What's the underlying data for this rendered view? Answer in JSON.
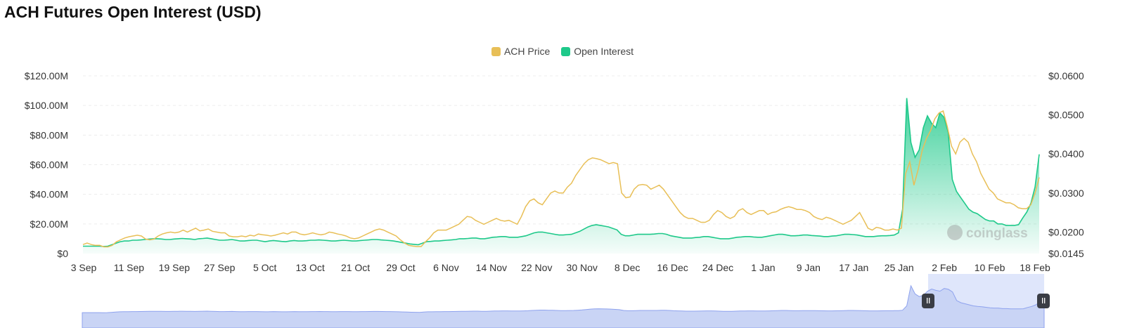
{
  "header": {
    "title": "ACH Futures Open Interest (USD)"
  },
  "legend": [
    {
      "label": "ACH Price",
      "color": "#e8bf57"
    },
    {
      "label": "Open Interest",
      "color": "#1ec98a"
    }
  ],
  "watermark": "coinglass",
  "chart_data": {
    "type": "area",
    "title": "ACH Futures Open Interest (USD)",
    "x_ticks": [
      "3 Sep",
      "11 Sep",
      "19 Sep",
      "27 Sep",
      "5 Oct",
      "13 Oct",
      "21 Oct",
      "29 Oct",
      "6 Nov",
      "14 Nov",
      "22 Nov",
      "30 Nov",
      "8 Dec",
      "16 Dec",
      "24 Dec",
      "1 Jan",
      "9 Jan",
      "17 Jan",
      "25 Jan",
      "2 Feb",
      "10 Feb",
      "18 Feb"
    ],
    "y_left": {
      "ticks": [
        "$0",
        "$20.00M",
        "$40.00M",
        "$60.00M",
        "$80.00M",
        "$100.00M",
        "$120.00M"
      ],
      "range": [
        0,
        120
      ]
    },
    "y_right": {
      "ticks": [
        "$0.0145",
        "$0.0200",
        "$0.0300",
        "$0.0400",
        "$0.0500",
        "$0.0600"
      ],
      "range": [
        0.0145,
        0.06
      ]
    },
    "series": [
      {
        "name": "Open Interest",
        "axis": "left",
        "color": "#1ec98a",
        "values": [
          5,
          5,
          5,
          5,
          5,
          4.8,
          5,
          6,
          7,
          8,
          8.5,
          8.5,
          9,
          9,
          9.2,
          9.5,
          9.8,
          10,
          10,
          9.8,
          9.5,
          9.5,
          9.8,
          10,
          10.2,
          10,
          9.8,
          9.5,
          10,
          10.2,
          10.5,
          10,
          9.5,
          9,
          9,
          9.2,
          9.5,
          9,
          8.5,
          8.5,
          8.8,
          9,
          9,
          8.5,
          8,
          8.5,
          8.8,
          8.5,
          8.2,
          8,
          8.5,
          8.8,
          8.5,
          8.5,
          8.7,
          9,
          9,
          9.2,
          9,
          8.8,
          8.5,
          8.5,
          8.8,
          9,
          8.8,
          8.5,
          8.5,
          8.8,
          9,
          9.2,
          9.5,
          9.5,
          9.2,
          9,
          8.8,
          8.5,
          8,
          7.5,
          7,
          6.5,
          6.2,
          6,
          7,
          8,
          8.2,
          8.5,
          8.5,
          8.8,
          9,
          9.2,
          9.5,
          10,
          10,
          10.2,
          10.5,
          10.5,
          10,
          10,
          10.5,
          11,
          11.2,
          11.5,
          11.5,
          11,
          11,
          11,
          11.5,
          12,
          13,
          14,
          14.5,
          14.5,
          14,
          13.5,
          13,
          12.5,
          12.5,
          12.8,
          13,
          14,
          15,
          16.5,
          18,
          19,
          19.5,
          19,
          18.5,
          18,
          17,
          16,
          13,
          12,
          12,
          12.5,
          13,
          13,
          13,
          13,
          13.2,
          13.5,
          13.5,
          13,
          12,
          11.5,
          11,
          10.5,
          10.5,
          10.5,
          10.8,
          11,
          11.5,
          11.5,
          11,
          10.5,
          10,
          10,
          10,
          10.5,
          11,
          11.2,
          11.5,
          11.5,
          11.2,
          11,
          11,
          11.5,
          12,
          12.5,
          13,
          13,
          12.5,
          12,
          12,
          12.2,
          12.5,
          12.5,
          12.2,
          12,
          11.8,
          11.5,
          11.5,
          11.8,
          12,
          12.5,
          13,
          13,
          12.8,
          12.5,
          12,
          11.5,
          11.5,
          11.5,
          11.8,
          12,
          12,
          12.2,
          12.5,
          14,
          30,
          105,
          75,
          65,
          70,
          85,
          93,
          88,
          85,
          95,
          92,
          82,
          50,
          42,
          38,
          34,
          30,
          28,
          27,
          25,
          23,
          22,
          22,
          20,
          20,
          19,
          19,
          19,
          19.5,
          24,
          28,
          34,
          45,
          67
        ],
        "area": true
      },
      {
        "name": "ACH Price",
        "axis": "right",
        "color": "#e8bf57",
        "values": [
          0.0168,
          0.0172,
          0.0168,
          0.0166,
          0.0166,
          0.0162,
          0.0162,
          0.0166,
          0.0175,
          0.018,
          0.0185,
          0.0188,
          0.019,
          0.0192,
          0.019,
          0.0182,
          0.018,
          0.0182,
          0.019,
          0.0195,
          0.0198,
          0.02,
          0.0198,
          0.02,
          0.0205,
          0.02,
          0.0205,
          0.021,
          0.0203,
          0.0205,
          0.0208,
          0.0202,
          0.02,
          0.0198,
          0.0198,
          0.019,
          0.0188,
          0.0188,
          0.019,
          0.0188,
          0.0192,
          0.019,
          0.0195,
          0.0193,
          0.0192,
          0.019,
          0.0192,
          0.0195,
          0.0198,
          0.0195,
          0.02,
          0.02,
          0.0195,
          0.0193,
          0.0195,
          0.0198,
          0.0195,
          0.0193,
          0.0195,
          0.02,
          0.0198,
          0.0195,
          0.0193,
          0.019,
          0.0185,
          0.0183,
          0.0185,
          0.019,
          0.0195,
          0.02,
          0.0205,
          0.0208,
          0.0205,
          0.02,
          0.0195,
          0.019,
          0.018,
          0.0172,
          0.0166,
          0.0164,
          0.0163,
          0.0163,
          0.0175,
          0.0185,
          0.0198,
          0.0205,
          0.0205,
          0.0205,
          0.021,
          0.0215,
          0.022,
          0.023,
          0.024,
          0.0238,
          0.023,
          0.0225,
          0.022,
          0.0225,
          0.023,
          0.0235,
          0.023,
          0.0228,
          0.023,
          0.0225,
          0.022,
          0.024,
          0.0265,
          0.028,
          0.0285,
          0.0275,
          0.027,
          0.0285,
          0.03,
          0.0305,
          0.03,
          0.03,
          0.0315,
          0.0325,
          0.0345,
          0.036,
          0.0375,
          0.0385,
          0.039,
          0.0388,
          0.0385,
          0.038,
          0.0375,
          0.0378,
          0.0375,
          0.03,
          0.0288,
          0.029,
          0.031,
          0.032,
          0.0322,
          0.032,
          0.031,
          0.0315,
          0.032,
          0.031,
          0.0295,
          0.028,
          0.0265,
          0.025,
          0.024,
          0.0235,
          0.0235,
          0.023,
          0.0225,
          0.0225,
          0.023,
          0.0245,
          0.0255,
          0.025,
          0.024,
          0.0235,
          0.024,
          0.0255,
          0.026,
          0.025,
          0.0245,
          0.025,
          0.0255,
          0.0255,
          0.0245,
          0.025,
          0.0252,
          0.0258,
          0.0262,
          0.0265,
          0.0262,
          0.0258,
          0.0258,
          0.0255,
          0.025,
          0.024,
          0.0235,
          0.0232,
          0.0238,
          0.0235,
          0.023,
          0.0225,
          0.022,
          0.0225,
          0.023,
          0.024,
          0.025,
          0.023,
          0.021,
          0.0205,
          0.0212,
          0.021,
          0.0205,
          0.0205,
          0.0208,
          0.0205,
          0.021,
          0.035,
          0.038,
          0.032,
          0.036,
          0.041,
          0.044,
          0.046,
          0.049,
          0.0505,
          0.051,
          0.047,
          0.042,
          0.04,
          0.043,
          0.044,
          0.043,
          0.04,
          0.038,
          0.035,
          0.033,
          0.031,
          0.03,
          0.0285,
          0.028,
          0.0275,
          0.0275,
          0.027,
          0.0262,
          0.026,
          0.026,
          0.027,
          0.03,
          0.034
        ]
      }
    ],
    "legend_position": "top-center",
    "grid": true
  }
}
